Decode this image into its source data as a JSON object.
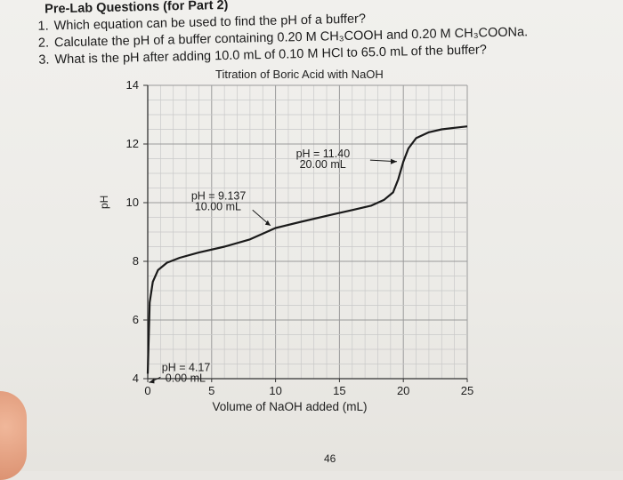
{
  "questions": {
    "title": "Pre-Lab Questions (for Part 2)",
    "items": [
      {
        "num": "1.",
        "text": "Which equation can be used to find the pH of a buffer?"
      },
      {
        "num": "2.",
        "text": "Calculate the pH of a buffer containing 0.20 M CH₃COOH and 0.20 M CH₃COONa."
      },
      {
        "num": "3.",
        "text": "What is the pH after adding 10.0 mL of 0.10 M HCl to 65.0 mL of the buffer?"
      }
    ]
  },
  "chart_data": {
    "type": "line",
    "title": "Titration of Boric Acid with NaOH",
    "xlabel": "Volume of NaOH added (mL)",
    "ylabel": "pH",
    "xlim": [
      0,
      25
    ],
    "ylim": [
      4,
      14
    ],
    "x_ticks": [
      "0",
      "5",
      "10",
      "15",
      "20",
      "25"
    ],
    "y_ticks": [
      "4",
      "6",
      "8",
      "10",
      "12",
      "14"
    ],
    "grid": true,
    "series": [
      {
        "x": [
          0,
          0.15,
          0.4,
          0.8,
          1.5,
          2.5,
          4,
          6,
          8,
          10,
          12,
          14,
          16,
          17.5,
          18.5,
          19.2,
          19.6,
          20.0,
          20.4,
          21,
          22,
          23,
          24,
          25
        ],
        "y": [
          4.17,
          6.6,
          7.3,
          7.7,
          7.95,
          8.12,
          8.3,
          8.5,
          8.75,
          9.137,
          9.35,
          9.55,
          9.75,
          9.9,
          10.1,
          10.35,
          10.8,
          11.4,
          11.85,
          12.2,
          12.4,
          12.5,
          12.55,
          12.6
        ]
      }
    ],
    "annotations": [
      {
        "line1": "pH = 4.17",
        "line2": "0.00 mL",
        "x": 0,
        "y": 4.17
      },
      {
        "line1": "pH = 9.137",
        "line2": "10.00 mL",
        "x": 10,
        "y": 9.137
      },
      {
        "line1": "pH = 11.40",
        "line2": "20.00 mL",
        "x": 20,
        "y": 11.4
      }
    ]
  },
  "page_number": "46",
  "colors": {
    "line": "#1a1a1a",
    "grid": "#9a9a9a",
    "minor_grid": "#c9c9c9"
  }
}
